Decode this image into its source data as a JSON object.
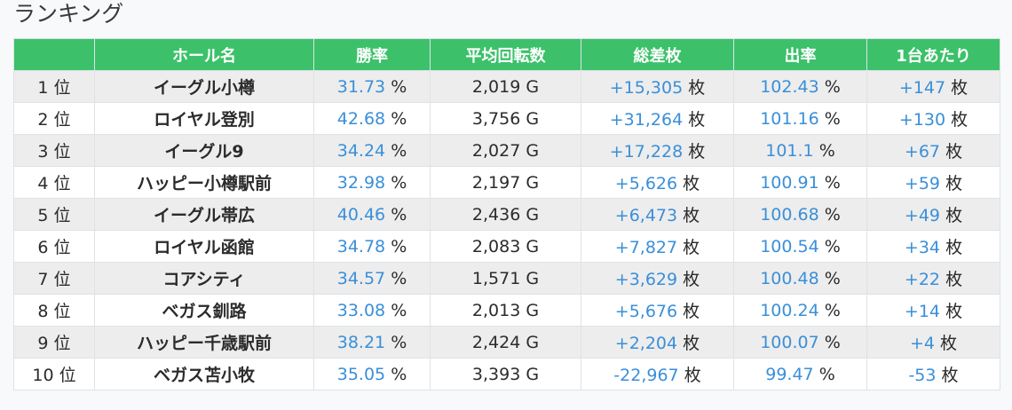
{
  "title": "ランキング",
  "headers": [
    "",
    "ホール名",
    "勝率",
    "平均回転数",
    "総差枚",
    "出率",
    "1台あたり"
  ],
  "units": {
    "percent": "%",
    "games": "G",
    "coins": "枚"
  },
  "rows": [
    {
      "rank": "1 位",
      "hall": "イーグル小樽",
      "win_rate": "31.73",
      "avg_spins": "2,019",
      "total_diff": "+15,305",
      "payout": "102.43",
      "per_machine": "+147"
    },
    {
      "rank": "2 位",
      "hall": "ロイヤル登別",
      "win_rate": "42.68",
      "avg_spins": "3,756",
      "total_diff": "+31,264",
      "payout": "101.16",
      "per_machine": "+130"
    },
    {
      "rank": "3 位",
      "hall": "イーグル9",
      "win_rate": "34.24",
      "avg_spins": "2,027",
      "total_diff": "+17,228",
      "payout": "101.1",
      "per_machine": "+67"
    },
    {
      "rank": "4 位",
      "hall": "ハッピー小樽駅前",
      "win_rate": "32.98",
      "avg_spins": "2,197",
      "total_diff": "+5,626",
      "payout": "100.91",
      "per_machine": "+59"
    },
    {
      "rank": "5 位",
      "hall": "イーグル帯広",
      "win_rate": "40.46",
      "avg_spins": "2,436",
      "total_diff": "+6,473",
      "payout": "100.68",
      "per_machine": "+49"
    },
    {
      "rank": "6 位",
      "hall": "ロイヤル函館",
      "win_rate": "34.78",
      "avg_spins": "2,083",
      "total_diff": "+7,827",
      "payout": "100.54",
      "per_machine": "+34"
    },
    {
      "rank": "7 位",
      "hall": "コアシティ",
      "win_rate": "34.57",
      "avg_spins": "1,571",
      "total_diff": "+3,629",
      "payout": "100.48",
      "per_machine": "+22"
    },
    {
      "rank": "8 位",
      "hall": "ベガス釧路",
      "win_rate": "33.08",
      "avg_spins": "2,013",
      "total_diff": "+5,676",
      "payout": "100.24",
      "per_machine": "+14"
    },
    {
      "rank": "9 位",
      "hall": "ハッピー千歳駅前",
      "win_rate": "38.21",
      "avg_spins": "2,424",
      "total_diff": "+2,204",
      "payout": "100.07",
      "per_machine": "+4"
    },
    {
      "rank": "10 位",
      "hall": "ベガス苫小牧",
      "win_rate": "35.05",
      "avg_spins": "3,393",
      "total_diff": "-22,967",
      "payout": "99.47",
      "per_machine": "-53"
    }
  ]
}
